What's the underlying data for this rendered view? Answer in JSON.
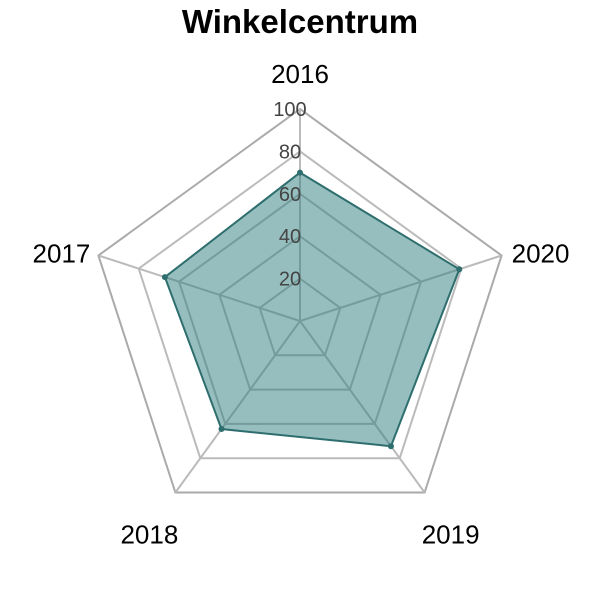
{
  "chart_data": {
    "type": "radar",
    "title": "Winkelcentrum",
    "categories": [
      "2016",
      "2017",
      "2018",
      "2019",
      "2020"
    ],
    "series": [
      {
        "values": [
          70,
          67,
          63,
          73,
          79
        ],
        "fill_color": "#2e7d7d",
        "line_color": "#2e6e6e"
      }
    ],
    "rlim": [
      0,
      100
    ],
    "ticks": [
      20,
      40,
      60,
      80,
      100
    ],
    "tick_labels": [
      "20",
      "40",
      "60",
      "80",
      "100"
    ],
    "grid": true,
    "legend": false,
    "colors": {
      "grid": "#bbbbbb",
      "outer_grid": "#aaaaaa"
    }
  }
}
